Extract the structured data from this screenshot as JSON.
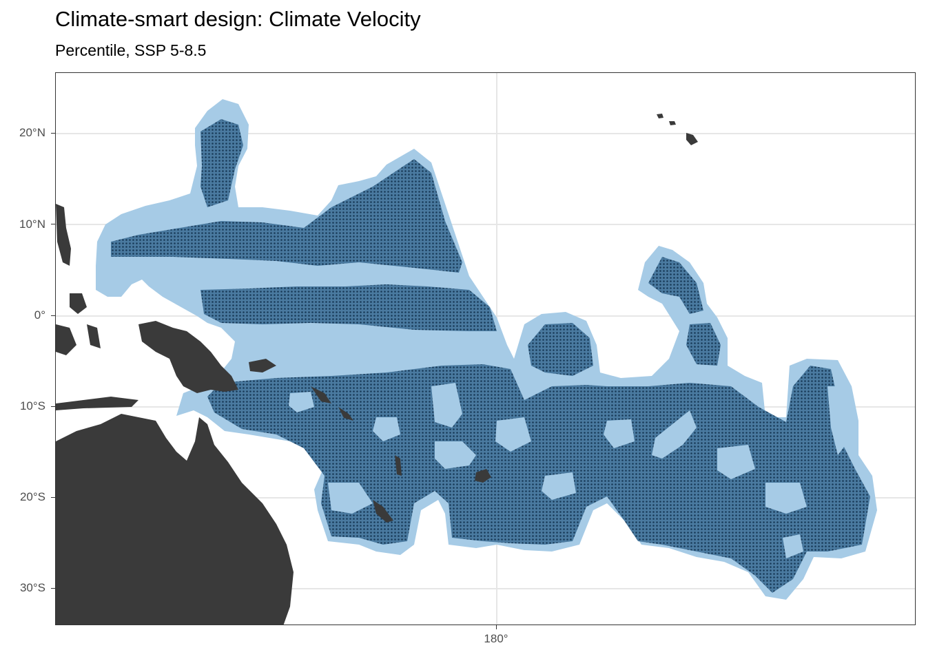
{
  "title": "Climate-smart design: Climate Velocity",
  "subtitle": "Percentile, SSP 5-8.5",
  "y_axis": {
    "ticks": [
      {
        "label": "20°N",
        "value": 20
      },
      {
        "label": "10°N",
        "value": 10
      },
      {
        "label": "0°",
        "value": 0
      },
      {
        "label": "10°S",
        "value": -10
      },
      {
        "label": "20°S",
        "value": -20
      },
      {
        "label": "30°S",
        "value": -30
      }
    ]
  },
  "x_axis": {
    "ticks": [
      {
        "label": "180°",
        "value": 180
      }
    ]
  },
  "colors": {
    "region_fill": "#a6cbe6",
    "selected_fill": "#3f6f94",
    "selected_dots": "#173b5a",
    "land": "#3a3a3a",
    "grid": "#e6e6e6"
  },
  "legend": "none"
}
